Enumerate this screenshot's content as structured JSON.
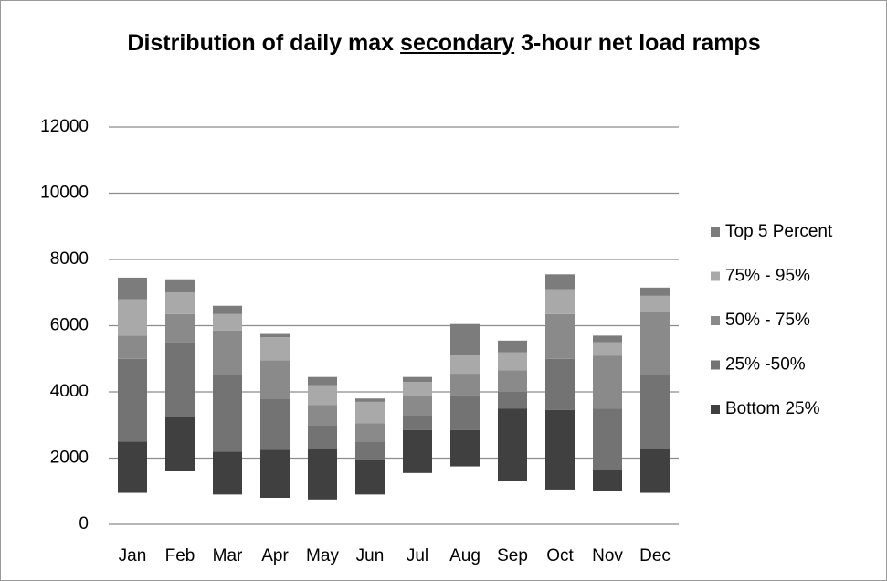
{
  "chart_data": {
    "type": "bar",
    "stacked": true,
    "title": [
      "Distribution of daily max",
      "secondary",
      "3-hour net load ramps"
    ],
    "categories": [
      "Jan",
      "Feb",
      "Mar",
      "Apr",
      "May",
      "Jun",
      "Jul",
      "Aug",
      "Sep",
      "Oct",
      "Nov",
      "Dec"
    ],
    "series": [
      {
        "color": "none",
        "values": [
          950,
          1600,
          900,
          800,
          750,
          900,
          1550,
          1750,
          1300,
          1050,
          1000,
          950
        ]
      },
      {
        "name": "Bottom 25%",
        "color": "#404040",
        "values": [
          1550,
          1650,
          1300,
          1450,
          1550,
          1050,
          1300,
          1100,
          2200,
          2400,
          650,
          1350
        ]
      },
      {
        "name": "25% -50%",
        "color": "#737373",
        "values": [
          2500,
          2250,
          2300,
          1550,
          700,
          550,
          450,
          1050,
          500,
          1550,
          1850,
          2200
        ]
      },
      {
        "name": "50% - 75%",
        "color": "#8a8a8a",
        "values": [
          700,
          850,
          1350,
          1150,
          600,
          550,
          600,
          650,
          650,
          1350,
          1600,
          1900
        ]
      },
      {
        "name": "75% - 95%",
        "color": "#a9a9a9",
        "values": [
          1100,
          650,
          500,
          700,
          600,
          650,
          400,
          550,
          550,
          750,
          400,
          500
        ]
      },
      {
        "name": "Top 5 Percent",
        "color": "#7c7c7c",
        "values": [
          650,
          400,
          250,
          100,
          250,
          100,
          150,
          950,
          350,
          450,
          200,
          250
        ]
      }
    ],
    "ylim": [
      0,
      12000
    ],
    "yticks": [
      0,
      2000,
      4000,
      6000,
      8000,
      10000,
      12000
    ],
    "grid": true,
    "legend": "right"
  }
}
